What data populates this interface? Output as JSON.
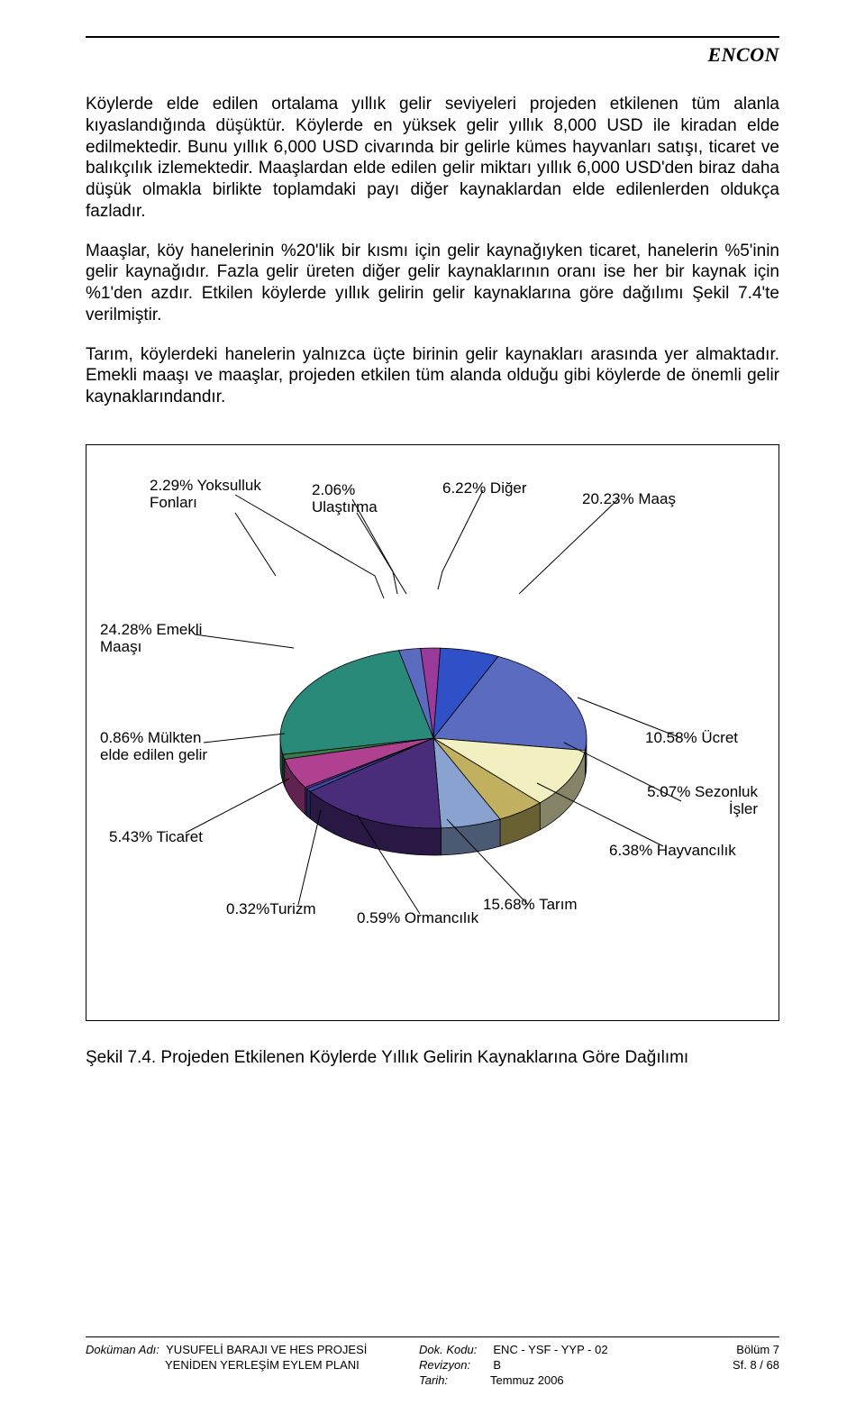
{
  "brand": "ENCON",
  "paragraphs": {
    "p1": "Köylerde elde edilen ortalama yıllık gelir seviyeleri projeden etkilenen tüm alanla kıyaslandığında düşüktür. Köylerde en yüksek gelir yıllık 8,000 USD ile kiradan elde edilmektedir. Bunu yıllık 6,000 USD civarında bir gelirle kümes hayvanları satışı, ticaret ve balıkçılık izlemektedir. Maaşlardan elde edilen gelir miktarı yıllık 6,000 USD'den biraz daha düşük olmakla birlikte toplamdaki payı diğer kaynaklardan elde edilenlerden oldukça fazladır.",
    "p2": "Maaşlar, köy hanelerinin %20'lik bir kısmı için gelir kaynağıyken ticaret, hanelerin %5'inin gelir kaynağıdır. Fazla gelir üreten diğer gelir kaynaklarının oranı ise her bir kaynak için %1'den azdır. Etkilen köylerde yıllık gelirin gelir kaynaklarına göre dağılımı Şekil 7.4'te verilmiştir.",
    "p3": "Tarım, köylerdeki hanelerin yalnızca üçte birinin gelir kaynakları arasında yer almaktadır. Emekli maaşı ve maaşlar, projeden etkilen tüm alanda olduğu gibi köylerde de önemli gelir kaynaklarındandır."
  },
  "chart": {
    "type": "pie-3d",
    "labels": {
      "yoksulluk": "2.29% Yoksulluk\nFonları",
      "ulastirma": "2.06%\nUlaştırma",
      "diger": "6.22% Diğer",
      "maas": "20.23% Maaş",
      "emekli": "24.28% Emekli\nMaaşı",
      "mulkten": "0.86% Mülkten\nelde edilen gelir",
      "ticaret": "5.43% Ticaret",
      "turizm": "0.32%Turizm",
      "ormancilik": "0.59% Ormancılık",
      "tarim": "15.68% Tarım",
      "hayvancilik": "6.38% Hayvancılık",
      "sezonluk": "5.07% Sezonluk\nİşler",
      "ucret": "10.58% Ücret"
    },
    "slices": [
      {
        "label": "Maaş",
        "value": 20.23,
        "color": "#5b6bbf"
      },
      {
        "label": "Ücret",
        "value": 10.58,
        "color": "#f2f0c0"
      },
      {
        "label": "Sezonluk İşler",
        "value": 5.07,
        "color": "#c0b060"
      },
      {
        "label": "Hayvancılık",
        "value": 6.38,
        "color": "#8aa2d0"
      },
      {
        "label": "Tarım",
        "value": 15.68,
        "color": "#4a2d7a"
      },
      {
        "label": "Ormancılık",
        "value": 0.59,
        "color": "#3a4aa0"
      },
      {
        "label": "Turizm",
        "value": 0.32,
        "color": "#7030a0"
      },
      {
        "label": "Ticaret",
        "value": 5.43,
        "color": "#b04090"
      },
      {
        "label": "Mülkten elde edilen gelir",
        "value": 0.86,
        "color": "#3a7a4a"
      },
      {
        "label": "Emekli Maaşı",
        "value": 24.28,
        "color": "#2a8a7a"
      },
      {
        "label": "Yoksulluk Fonları",
        "value": 2.29,
        "color": "#5b6bbf"
      },
      {
        "label": "Ulaştırma",
        "value": 2.06,
        "color": "#9a3a9a"
      },
      {
        "label": "Diğer",
        "value": 6.22,
        "color": "#3050c8"
      }
    ],
    "depth_color": "#707070",
    "border_color": "#000000",
    "background": "#ffffff"
  },
  "caption": "Şekil 7.4. Projeden Etkilenen Köylerde Yıllık Gelirin Kaynaklarına Göre Dağılımı",
  "footer": {
    "doc_name_label": "Doküman Adı:",
    "doc_name_line1": "YUSUFELİ BARAJI VE HES PROJESİ",
    "doc_name_line2": "YENİDEN YERLEŞİM EYLEM PLANI",
    "doc_code_label": "Dok. Kodu:",
    "doc_code": "ENC - YSF - YYP - 02",
    "revision_label": "Revizyon:",
    "revision": "B",
    "date_label": "Tarih:",
    "date": "Temmuz 2006",
    "section_label": "Bölüm 7",
    "page_label": "Sf. 8 / 68"
  }
}
